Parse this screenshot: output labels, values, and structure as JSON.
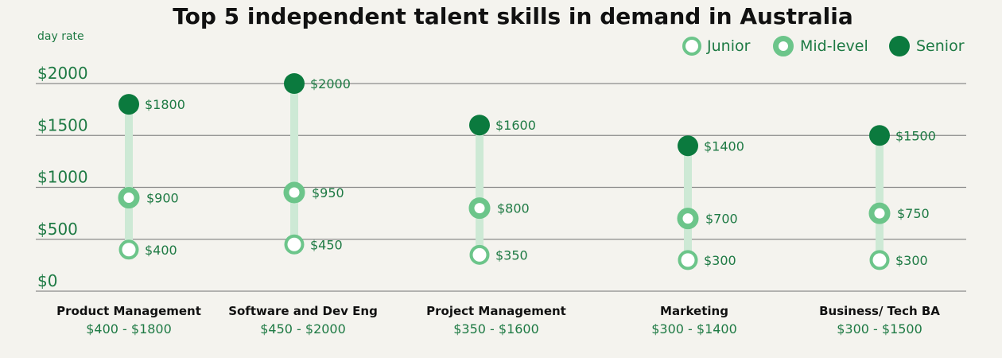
{
  "chart_data": {
    "type": "scatter",
    "title": "Top 5 independent talent skills in demand in Australia",
    "ylabel": "day rate",
    "ylim": [
      0,
      2000
    ],
    "yticks": [
      0,
      500,
      1000,
      1500,
      2000
    ],
    "ytick_labels": [
      "$0",
      "$500",
      "$1000",
      "$1500",
      "$2000"
    ],
    "grid": true,
    "legend_position": "top-right",
    "colors": {
      "senior": "#0b7a3e",
      "mid": "#6cc58a",
      "junior": "#6cc58a",
      "range_bar": "#cde9d5",
      "grid": "#8a8a8a"
    },
    "categories": [
      "Product Management",
      "Software and Dev Eng",
      "Project Management",
      "Marketing",
      "Business/ Tech BA"
    ],
    "ranges": [
      "$400 - $1800",
      "$450 - $2000",
      "$350 - $1600",
      "$300 - $1400",
      "$300 - $1500"
    ],
    "series": [
      {
        "name": "Junior",
        "values": [
          400,
          450,
          350,
          300,
          300
        ],
        "labels": [
          "$400",
          "$450",
          "$350",
          "$300",
          "$300"
        ]
      },
      {
        "name": "Mid-level",
        "values": [
          900,
          950,
          800,
          700,
          750
        ],
        "labels": [
          "$900",
          "$950",
          "$800",
          "$700",
          "$750"
        ]
      },
      {
        "name": "Senior",
        "values": [
          1800,
          2000,
          1600,
          1400,
          1500
        ],
        "labels": [
          "$1800",
          "$2000",
          "$1600",
          "$1400",
          "$1500"
        ]
      }
    ]
  }
}
